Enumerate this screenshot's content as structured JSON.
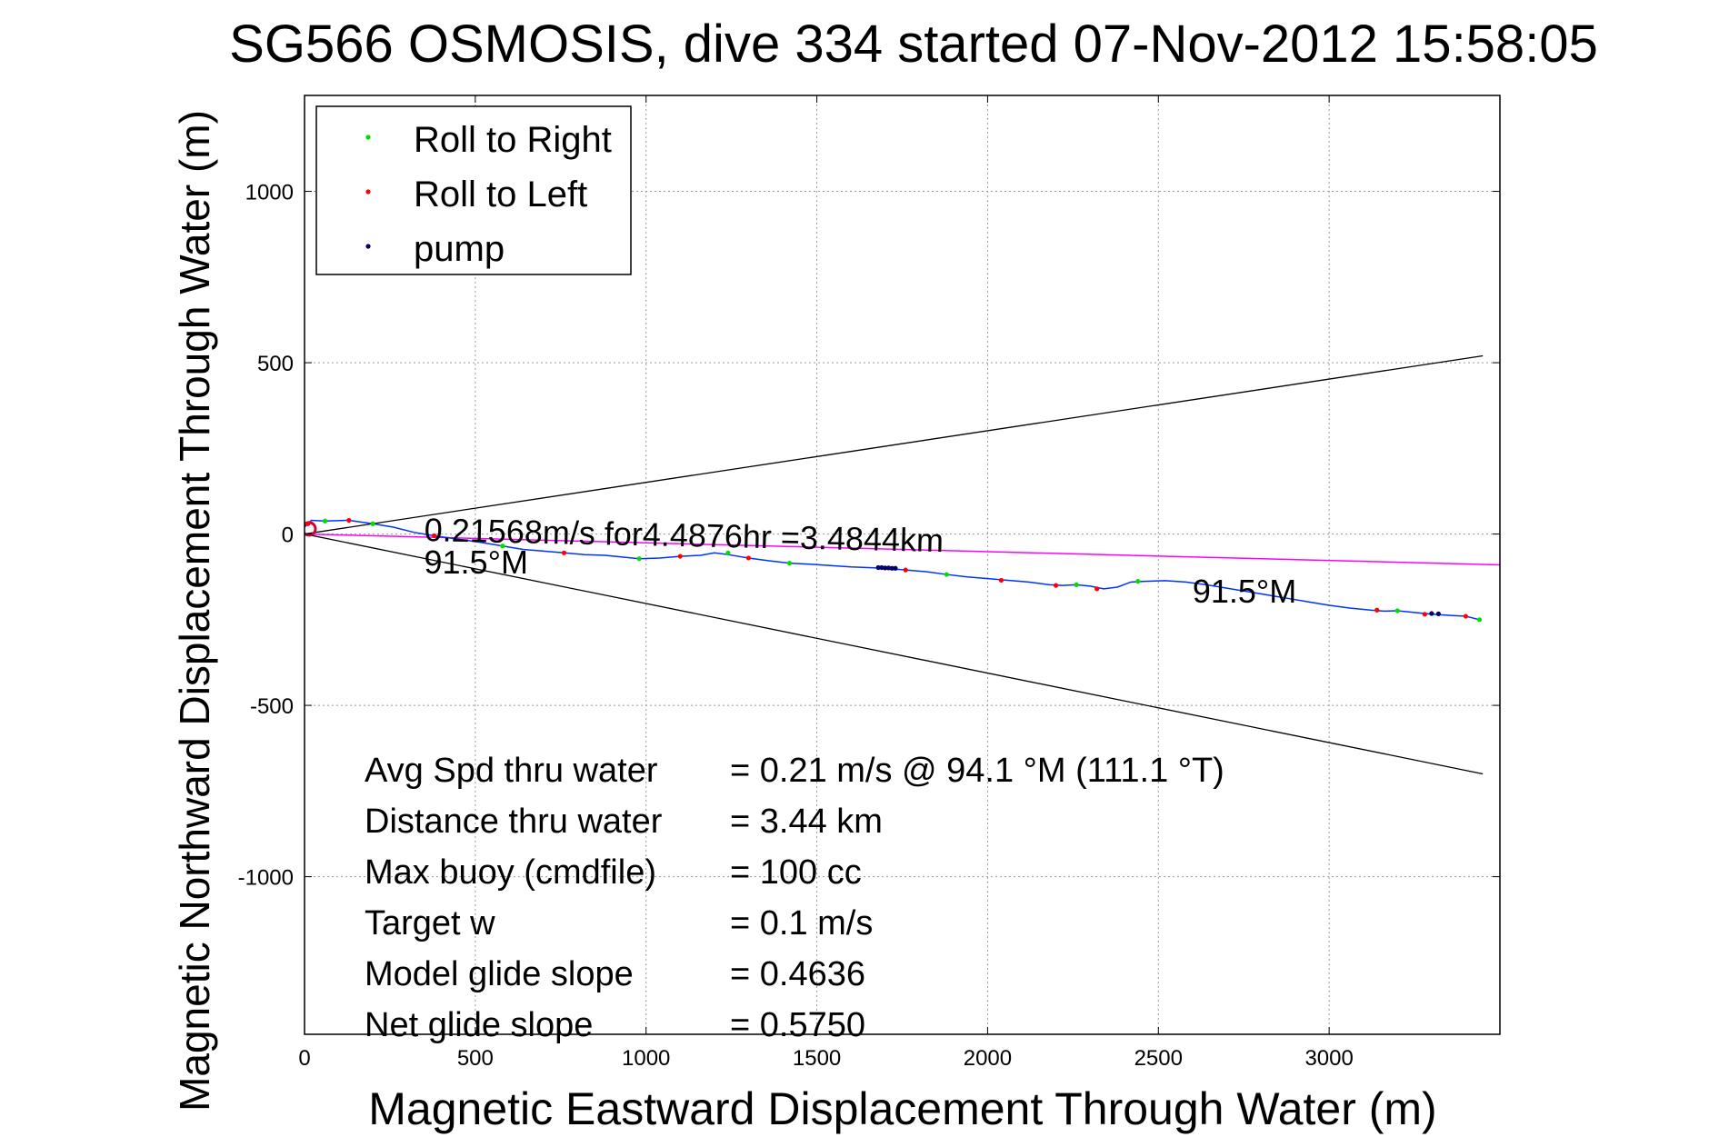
{
  "chart_data": {
    "type": "line",
    "title": "SG566 OSMOSIS, dive 334 started 07-Nov-2012 15:58:05",
    "xlabel": "Magnetic Eastward Displacement Through Water (m)",
    "ylabel": "Magnetic Northward Displacement Through Water (m)",
    "xlim": [
      0,
      3500
    ],
    "ylim": [
      -1460,
      1280
    ],
    "xticks": [
      0,
      500,
      1000,
      1500,
      2000,
      2500,
      3000
    ],
    "yticks": [
      -1000,
      -500,
      0,
      500,
      1000
    ],
    "grid": true,
    "legend_position": "top-left",
    "legend": [
      {
        "label": "Roll to Right",
        "color": "#00dd00"
      },
      {
        "label": "Roll to Left",
        "color": "#ff0000"
      },
      {
        "label": "pump",
        "color": "#000066"
      }
    ],
    "track": {
      "color": "#0033ff",
      "x": [
        0,
        20,
        60,
        130,
        200,
        260,
        320,
        380,
        450,
        520,
        580,
        640,
        700,
        760,
        820,
        880,
        940,
        980,
        1040,
        1100,
        1160,
        1200,
        1240,
        1300,
        1360,
        1420,
        1480,
        1540,
        1600,
        1650,
        1700,
        1760,
        1820,
        1880,
        1940,
        2000,
        2060,
        2120,
        2180,
        2220,
        2260,
        2300,
        2340,
        2380,
        2420,
        2460,
        2520,
        2580,
        2640,
        2700,
        2760,
        2820,
        2880,
        2940,
        3000,
        3060,
        3120,
        3160,
        3200,
        3260,
        3300,
        3360,
        3400,
        3440
      ],
      "y": [
        20,
        40,
        38,
        40,
        30,
        20,
        5,
        -5,
        -15,
        -25,
        -35,
        -45,
        -50,
        -55,
        -60,
        -62,
        -68,
        -72,
        -70,
        -65,
        -62,
        -55,
        -60,
        -70,
        -78,
        -85,
        -88,
        -92,
        -96,
        -98,
        -100,
        -105,
        -110,
        -118,
        -125,
        -130,
        -135,
        -140,
        -148,
        -150,
        -148,
        -152,
        -160,
        -155,
        -140,
        -138,
        -136,
        -140,
        -148,
        -158,
        -168,
        -178,
        -188,
        -198,
        -208,
        -216,
        -222,
        -225,
        -224,
        -230,
        -234,
        -238,
        -240,
        -250
      ]
    },
    "roll_right_points": {
      "x": [
        60,
        200,
        580,
        980,
        1240,
        1420,
        1880,
        2260,
        2440,
        3200,
        3440
      ],
      "y": [
        38,
        30,
        -35,
        -72,
        -55,
        -85,
        -118,
        -148,
        -138,
        -224,
        -250
      ]
    },
    "roll_left_points": {
      "x": [
        10,
        130,
        380,
        760,
        1100,
        1300,
        1760,
        2040,
        2200,
        2320,
        3140,
        3280,
        3400
      ],
      "y": [
        30,
        40,
        -5,
        -55,
        -65,
        -70,
        -105,
        -135,
        -150,
        -160,
        -222,
        -234,
        -240
      ]
    },
    "pump_points": {
      "x": [
        1680,
        1690,
        1700,
        1710,
        1720,
        1730,
        3300,
        3320
      ],
      "y": [
        -98,
        -98,
        -99,
        -99,
        -100,
        -100,
        -232,
        -233
      ]
    },
    "cone_lines": {
      "color": "#000000",
      "upper": {
        "x": [
          0,
          3450
        ],
        "y": [
          0,
          520
        ]
      },
      "lower": {
        "x": [
          0,
          3450
        ],
        "y": [
          0,
          -700
        ]
      }
    },
    "current_line": {
      "color": "#ff00ff",
      "x": [
        0,
        3500
      ],
      "y": [
        0,
        -90
      ]
    },
    "annotations": [
      {
        "id": "current",
        "text": "0.21568m/s for4.4876hr =3.4844km",
        "x": 350,
        "y": -20
      },
      {
        "id": "heading-start",
        "text": "91.5°M",
        "x": 350,
        "y": -115
      },
      {
        "id": "heading-end",
        "text": "91.5°M",
        "x": 2600,
        "y": -200
      }
    ],
    "stats": [
      {
        "label": "Avg Spd thru water",
        "value": "=  0.21 m/s @  94.1 °M (111.1 °T)"
      },
      {
        "label": "Distance thru water",
        "value": "=  3.44 km"
      },
      {
        "label": "Max buoy (cmdfile)",
        "value": "= 100 cc"
      },
      {
        "label": "Target w",
        "value": "= 0.1 m/s"
      },
      {
        "label": "Model glide slope",
        "value": "= 0.4636"
      },
      {
        "label": "Net glide slope",
        "value": "= 0.5750"
      }
    ]
  }
}
